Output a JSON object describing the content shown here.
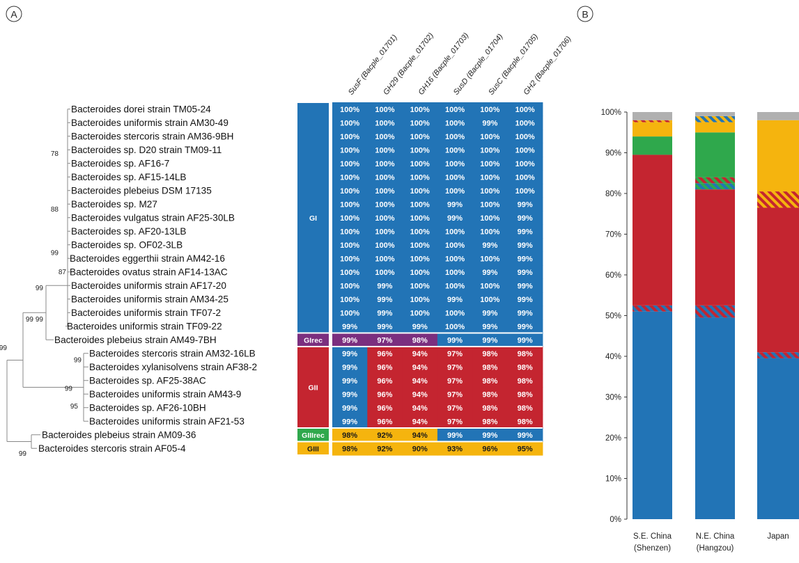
{
  "panels": {
    "a": "A",
    "b": "B"
  },
  "colors": {
    "gi": "#2274b6",
    "glrec": "#7b2f7f",
    "gii": "#c42530",
    "giiirec": "#2fa84c",
    "giii": "#f5b40e",
    "grey": "#b0b0b0",
    "tree": "#888888"
  },
  "chart_data": [
    {
      "type": "table",
      "columns": [
        "SusF (Bacple_01701)",
        "GH29 (Bacple_01702)",
        "GH16 (Bacple_01703)",
        "SusD (Bacple_01704)",
        "SusC (Bacple_01705)",
        "GH2 (Bacple_01706)"
      ],
      "groups": [
        {
          "label": "GI",
          "color": "gi",
          "rows": 17
        },
        {
          "label": "GIrec",
          "color": "glrec",
          "rows": 1
        },
        {
          "label": "GII",
          "color": "gii",
          "rows": 6
        },
        {
          "label": "GIIIrec",
          "color": "giiirec",
          "rows": 1
        },
        {
          "label": "GIII",
          "color": "giii",
          "rows": 1
        }
      ],
      "rows": [
        {
          "name": "Bacteroides dorei strain TM05-24",
          "values": [
            "100%",
            "100%",
            "100%",
            "100%",
            "100%",
            "100%"
          ],
          "cells": [
            "gi",
            "gi",
            "gi",
            "gi",
            "gi",
            "gi"
          ]
        },
        {
          "name": "Bacteroides uniformis strain AM30-49",
          "values": [
            "100%",
            "100%",
            "100%",
            "100%",
            "99%",
            "100%"
          ],
          "cells": [
            "gi",
            "gi",
            "gi",
            "gi",
            "gi",
            "gi"
          ]
        },
        {
          "name": "Bacteroides stercoris strain AM36-9BH",
          "values": [
            "100%",
            "100%",
            "100%",
            "100%",
            "100%",
            "100%"
          ],
          "cells": [
            "gi",
            "gi",
            "gi",
            "gi",
            "gi",
            "gi"
          ]
        },
        {
          "name": "Bacteroides sp. D20 strain TM09-11",
          "values": [
            "100%",
            "100%",
            "100%",
            "100%",
            "100%",
            "100%"
          ],
          "cells": [
            "gi",
            "gi",
            "gi",
            "gi",
            "gi",
            "gi"
          ]
        },
        {
          "name": "Bacteroides sp. AF16-7",
          "values": [
            "100%",
            "100%",
            "100%",
            "100%",
            "100%",
            "100%"
          ],
          "cells": [
            "gi",
            "gi",
            "gi",
            "gi",
            "gi",
            "gi"
          ]
        },
        {
          "name": "Bacteroides sp. AF15-14LB",
          "values": [
            "100%",
            "100%",
            "100%",
            "100%",
            "100%",
            "100%"
          ],
          "cells": [
            "gi",
            "gi",
            "gi",
            "gi",
            "gi",
            "gi"
          ]
        },
        {
          "name": "Bacteroides plebeius DSM 17135",
          "values": [
            "100%",
            "100%",
            "100%",
            "100%",
            "100%",
            "100%"
          ],
          "cells": [
            "gi",
            "gi",
            "gi",
            "gi",
            "gi",
            "gi"
          ]
        },
        {
          "name": "Bacteroides sp. M27",
          "values": [
            "100%",
            "100%",
            "100%",
            "99%",
            "100%",
            "99%"
          ],
          "cells": [
            "gi",
            "gi",
            "gi",
            "gi",
            "gi",
            "gi"
          ]
        },
        {
          "name": "Bacteroides vulgatus strain AF25-30LB",
          "values": [
            "100%",
            "100%",
            "100%",
            "99%",
            "100%",
            "99%"
          ],
          "cells": [
            "gi",
            "gi",
            "gi",
            "gi",
            "gi",
            "gi"
          ]
        },
        {
          "name": "Bacteroides sp. AF20-13LB",
          "values": [
            "100%",
            "100%",
            "100%",
            "100%",
            "100%",
            "99%"
          ],
          "cells": [
            "gi",
            "gi",
            "gi",
            "gi",
            "gi",
            "gi"
          ]
        },
        {
          "name": "Bacteroides sp. OF02-3LB",
          "values": [
            "100%",
            "100%",
            "100%",
            "100%",
            "99%",
            "99%"
          ],
          "cells": [
            "gi",
            "gi",
            "gi",
            "gi",
            "gi",
            "gi"
          ]
        },
        {
          "name": "Bacteroides eggerthii strain AM42-16",
          "values": [
            "100%",
            "100%",
            "100%",
            "100%",
            "100%",
            "99%"
          ],
          "cells": [
            "gi",
            "gi",
            "gi",
            "gi",
            "gi",
            "gi"
          ]
        },
        {
          "name": "Bacteroides ovatus strain AF14-13AC",
          "values": [
            "100%",
            "100%",
            "100%",
            "100%",
            "99%",
            "99%"
          ],
          "cells": [
            "gi",
            "gi",
            "gi",
            "gi",
            "gi",
            "gi"
          ]
        },
        {
          "name": "Bacteroides uniformis strain AF17-20",
          "values": [
            "100%",
            "99%",
            "100%",
            "100%",
            "100%",
            "99%"
          ],
          "cells": [
            "gi",
            "gi",
            "gi",
            "gi",
            "gi",
            "gi"
          ]
        },
        {
          "name": "Bacteroides uniformis strain AM34-25",
          "values": [
            "100%",
            "99%",
            "100%",
            "99%",
            "100%",
            "99%"
          ],
          "cells": [
            "gi",
            "gi",
            "gi",
            "gi",
            "gi",
            "gi"
          ]
        },
        {
          "name": "Bacteroides uniformis strain TF07-2",
          "values": [
            "100%",
            "99%",
            "100%",
            "100%",
            "99%",
            "99%"
          ],
          "cells": [
            "gi",
            "gi",
            "gi",
            "gi",
            "gi",
            "gi"
          ]
        },
        {
          "name": "Bacteroides uniformis strain TF09-22",
          "values": [
            "99%",
            "99%",
            "99%",
            "100%",
            "99%",
            "99%"
          ],
          "cells": [
            "gi",
            "gi",
            "gi",
            "gi",
            "gi",
            "gi"
          ]
        },
        {
          "name": "Bacteroides plebeius strain AM49-7BH",
          "values": [
            "99%",
            "97%",
            "98%",
            "99%",
            "99%",
            "99%"
          ],
          "cells": [
            "glrec",
            "glrec",
            "glrec",
            "gi",
            "gi",
            "gi"
          ]
        },
        {
          "name": "Bacteroides stercoris strain AM32-16LB",
          "values": [
            "99%",
            "96%",
            "94%",
            "97%",
            "98%",
            "98%"
          ],
          "cells": [
            "gi",
            "gii",
            "gii",
            "gii",
            "gii",
            "gii"
          ]
        },
        {
          "name": "Bacteroides xylanisolvens strain AF38-2",
          "values": [
            "99%",
            "96%",
            "94%",
            "97%",
            "98%",
            "98%"
          ],
          "cells": [
            "gi",
            "gii",
            "gii",
            "gii",
            "gii",
            "gii"
          ]
        },
        {
          "name": "Bacteroides sp. AF25-38AC",
          "values": [
            "99%",
            "96%",
            "94%",
            "97%",
            "98%",
            "98%"
          ],
          "cells": [
            "gi",
            "gii",
            "gii",
            "gii",
            "gii",
            "gii"
          ]
        },
        {
          "name": "Bacteroides uniformis strain AM43-9",
          "values": [
            "99%",
            "96%",
            "94%",
            "97%",
            "98%",
            "98%"
          ],
          "cells": [
            "gi",
            "gii",
            "gii",
            "gii",
            "gii",
            "gii"
          ]
        },
        {
          "name": "Bacteroides sp. AF26-10BH",
          "values": [
            "99%",
            "96%",
            "94%",
            "97%",
            "98%",
            "98%"
          ],
          "cells": [
            "gi",
            "gii",
            "gii",
            "gii",
            "gii",
            "gii"
          ]
        },
        {
          "name": "Bacteroides uniformis strain AF21-53",
          "values": [
            "99%",
            "96%",
            "94%",
            "97%",
            "98%",
            "98%"
          ],
          "cells": [
            "gi",
            "gii",
            "gii",
            "gii",
            "gii",
            "gii"
          ]
        },
        {
          "name": "Bacteroides plebeius strain AM09-36",
          "values": [
            "98%",
            "92%",
            "94%",
            "99%",
            "99%",
            "99%"
          ],
          "cells": [
            "giii",
            "giii",
            "giii",
            "gi",
            "gi",
            "gi"
          ]
        },
        {
          "name": "Bacteroides stercoris strain AF05-4",
          "values": [
            "98%",
            "92%",
            "90%",
            "93%",
            "96%",
            "95%"
          ],
          "cells": [
            "giii",
            "giii",
            "giii",
            "giii",
            "giii",
            "giii"
          ]
        }
      ],
      "bootstrap": [
        "78",
        "88",
        "99",
        "87",
        "99",
        "99",
        "99",
        "99",
        "99",
        "99",
        "95",
        "99"
      ]
    },
    {
      "type": "bar",
      "stacked": true,
      "ylim": [
        0,
        100
      ],
      "yticks": [
        "0%",
        "10%",
        "20%",
        "30%",
        "40%",
        "50%",
        "60%",
        "70%",
        "80%",
        "90%",
        "100%"
      ],
      "categories": [
        {
          "line1": "S.E. China",
          "line2": "(Shenzen)"
        },
        {
          "line1": "N.E. China",
          "line2": "(Hangzou)"
        },
        {
          "line1": "Japan",
          "line2": ""
        }
      ],
      "grid": false,
      "stacks": [
        [
          {
            "color": "gi",
            "value": 51
          },
          {
            "color": "gi|gii",
            "value": 1.5
          },
          {
            "color": "gii",
            "value": 37
          },
          {
            "color": "giiirec",
            "value": 4.5
          },
          {
            "color": "giii",
            "value": 3.5
          },
          {
            "color": "gii|giii",
            "value": 0.5
          },
          {
            "color": "grey",
            "value": 2
          }
        ],
        [
          {
            "color": "gi",
            "value": 49.5
          },
          {
            "color": "gi|gii",
            "value": 3
          },
          {
            "color": "gii",
            "value": 28.5
          },
          {
            "color": "gi|giiirec",
            "value": 1.5
          },
          {
            "color": "gii|giiirec",
            "value": 1.5
          },
          {
            "color": "giiirec",
            "value": 11
          },
          {
            "color": "giii",
            "value": 2.5
          },
          {
            "color": "gi|giii",
            "value": 1.5
          },
          {
            "color": "grey",
            "value": 1
          }
        ],
        [
          {
            "color": "gi",
            "value": 39.5
          },
          {
            "color": "gi|gii",
            "value": 1.5
          },
          {
            "color": "gii",
            "value": 35.5
          },
          {
            "color": "gii|giii",
            "value": 4
          },
          {
            "color": "giii",
            "value": 17.5
          },
          {
            "color": "grey",
            "value": 2
          }
        ]
      ]
    }
  ]
}
